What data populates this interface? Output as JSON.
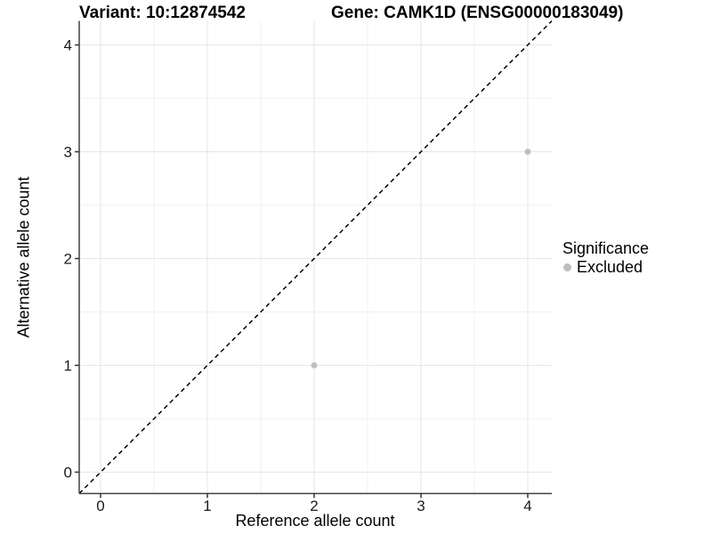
{
  "chart_data": {
    "type": "scatter",
    "title_left": "Variant: 10:12874542",
    "title_right": "Gene: CAMK1D (ENSG00000183049)",
    "xlabel": "Reference allele count",
    "ylabel": "Alternative allele count",
    "xlim": [
      -0.2,
      4.225
    ],
    "ylim": [
      -0.2,
      4.225
    ],
    "xticks": [
      0,
      1,
      2,
      3,
      4
    ],
    "yticks": [
      0,
      1,
      2,
      3,
      4
    ],
    "xticks_minor": [
      0.5,
      1.5,
      2.5,
      3.5
    ],
    "yticks_minor": [
      0.5,
      1.5,
      2.5,
      3.5
    ],
    "grid": "major+minor",
    "reference_line": {
      "equation": "y = x",
      "style": "dashed",
      "color": "#000000"
    },
    "series": [
      {
        "name": "Excluded",
        "color": "#bdbdbd",
        "points": [
          [
            2,
            1
          ],
          [
            4,
            3
          ]
        ]
      }
    ],
    "legend": {
      "title": "Significance",
      "position": "right",
      "items": [
        {
          "label": "Excluded",
          "color": "#bdbdbd"
        }
      ]
    },
    "colors": {
      "background": "#ffffff",
      "grid_major": "#e6e6e6",
      "grid_minor": "#f2f2f2",
      "axis_line": "#404040",
      "tick_mark": "#333333",
      "tick_text": "#1a1a1a",
      "point": "#bdbdbd"
    }
  }
}
